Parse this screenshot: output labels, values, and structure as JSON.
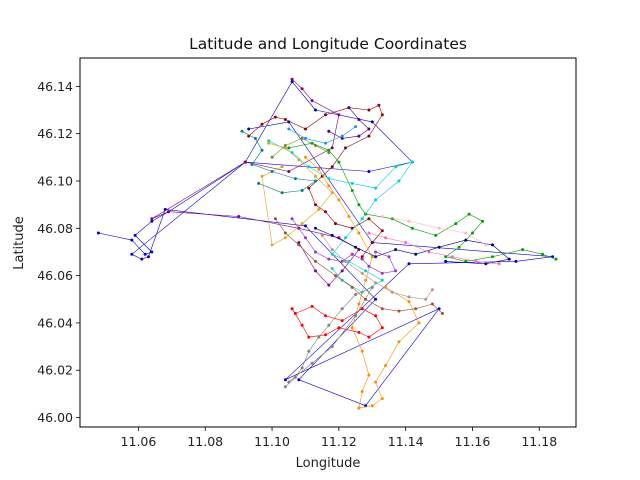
{
  "chart_data": {
    "type": "line",
    "title": "Latitude and Longitude Coordinates",
    "xlabel": "Longitude",
    "ylabel": "Latitude",
    "xlim": [
      11.0425,
      11.191
    ],
    "ylim": [
      45.996,
      46.152
    ],
    "xticks": [
      "11.06",
      "11.08",
      "11.10",
      "11.12",
      "11.14",
      "11.16",
      "11.18"
    ],
    "yticks": [
      "46.00",
      "46.02",
      "46.04",
      "46.06",
      "46.08",
      "46.10",
      "46.12",
      "46.14"
    ],
    "grid": false,
    "legend": "none",
    "series": [
      {
        "color": "#0000cc",
        "points": [
          [
            11.048,
            46.078
          ],
          [
            11.058,
            46.075
          ],
          [
            11.062,
            46.069
          ],
          [
            11.064,
            46.07
          ],
          [
            11.059,
            46.077
          ],
          [
            11.064,
            46.083
          ],
          [
            11.069,
            46.087
          ],
          [
            11.092,
            46.108
          ],
          [
            11.106,
            46.142
          ],
          [
            11.113,
            46.13
          ],
          [
            11.13,
            46.125
          ],
          [
            11.142,
            46.108
          ],
          [
            11.129,
            46.104
          ],
          [
            11.092,
            46.108
          ],
          [
            11.058,
            46.069
          ],
          [
            11.061,
            46.067
          ],
          [
            11.063,
            46.068
          ],
          [
            11.068,
            46.088
          ],
          [
            11.11,
            46.081
          ],
          [
            11.131,
            46.05
          ],
          [
            11.108,
            46.016
          ],
          [
            11.128,
            46.005
          ],
          [
            11.15,
            46.046
          ],
          [
            11.104,
            46.016
          ],
          [
            11.141,
            46.065
          ],
          [
            11.173,
            46.066
          ],
          [
            11.184,
            46.068
          ],
          [
            11.13,
            46.074
          ],
          [
            11.105,
            46.125
          ],
          [
            11.093,
            46.122
          ]
        ]
      },
      {
        "color": "#800080",
        "points": [
          [
            11.106,
            46.143
          ],
          [
            11.109,
            46.139
          ],
          [
            11.112,
            46.134
          ],
          [
            11.12,
            46.128
          ],
          [
            11.118,
            46.114
          ],
          [
            11.105,
            46.104
          ],
          [
            11.092,
            46.108
          ],
          [
            11.064,
            46.084
          ],
          [
            11.069,
            46.087
          ],
          [
            11.09,
            46.085
          ],
          [
            11.108,
            46.08
          ],
          [
            11.12,
            46.076
          ],
          [
            11.126,
            46.071
          ],
          [
            11.121,
            46.062
          ],
          [
            11.117,
            46.056
          ],
          [
            11.113,
            46.062
          ],
          [
            11.108,
            46.074
          ]
        ]
      },
      {
        "color": "#8b0000",
        "points": [
          [
            11.093,
            46.119
          ],
          [
            11.097,
            46.124
          ],
          [
            11.101,
            46.127
          ],
          [
            11.104,
            46.126
          ],
          [
            11.11,
            46.122
          ],
          [
            11.116,
            46.128
          ],
          [
            11.123,
            46.131
          ],
          [
            11.129,
            46.13
          ],
          [
            11.132,
            46.132
          ],
          [
            11.133,
            46.128
          ],
          [
            11.129,
            46.119
          ],
          [
            11.122,
            46.114
          ],
          [
            11.118,
            46.106
          ],
          [
            11.115,
            46.102
          ],
          [
            11.111,
            46.097
          ],
          [
            11.113,
            46.09
          ],
          [
            11.116,
            46.087
          ],
          [
            11.119,
            46.082
          ],
          [
            11.124,
            46.08
          ],
          [
            11.129,
            46.084
          ],
          [
            11.133,
            46.079
          ],
          [
            11.13,
            46.074
          ],
          [
            11.127,
            46.068
          ]
        ]
      },
      {
        "color": "#00a000",
        "points": [
          [
            11.105,
            46.114
          ],
          [
            11.112,
            46.116
          ],
          [
            11.117,
            46.113
          ],
          [
            11.12,
            46.108
          ],
          [
            11.124,
            46.096
          ],
          [
            11.126,
            46.09
          ],
          [
            11.128,
            46.086
          ],
          [
            11.136,
            46.084
          ],
          [
            11.142,
            46.08
          ],
          [
            11.149,
            46.077
          ],
          [
            11.155,
            46.082
          ],
          [
            11.159,
            46.086
          ],
          [
            11.163,
            46.083
          ],
          [
            11.16,
            46.078
          ],
          [
            11.156,
            46.072
          ],
          [
            11.152,
            46.068
          ],
          [
            11.158,
            46.066
          ],
          [
            11.166,
            46.068
          ],
          [
            11.175,
            46.071
          ],
          [
            11.181,
            46.069
          ],
          [
            11.185,
            46.067
          ]
        ]
      },
      {
        "color": "#00d0d0",
        "points": [
          [
            11.099,
            46.117
          ],
          [
            11.106,
            46.112
          ],
          [
            11.111,
            46.106
          ],
          [
            11.117,
            46.101
          ],
          [
            11.124,
            46.099
          ],
          [
            11.131,
            46.097
          ],
          [
            11.137,
            46.106
          ],
          [
            11.142,
            46.108
          ],
          [
            11.138,
            46.1
          ],
          [
            11.131,
            46.092
          ],
          [
            11.127,
            46.084
          ],
          [
            11.122,
            46.076
          ],
          [
            11.118,
            46.069
          ],
          [
            11.123,
            46.066
          ],
          [
            11.128,
            46.062
          ],
          [
            11.133,
            46.058
          ],
          [
            11.127,
            46.053
          ],
          [
            11.121,
            46.058
          ],
          [
            11.118,
            46.063
          ]
        ]
      },
      {
        "color": "#ff8c00",
        "points": [
          [
            11.11,
            46.11
          ],
          [
            11.114,
            46.105
          ],
          [
            11.117,
            46.098
          ],
          [
            11.12,
            46.092
          ],
          [
            11.123,
            46.085
          ],
          [
            11.126,
            46.078
          ],
          [
            11.13,
            46.068
          ],
          [
            11.128,
            46.058
          ],
          [
            11.126,
            46.048
          ],
          [
            11.124,
            46.038
          ],
          [
            11.127,
            46.028
          ],
          [
            11.129,
            46.018
          ],
          [
            11.127,
            46.011
          ],
          [
            11.126,
            46.004
          ],
          [
            11.13,
            46.005
          ],
          [
            11.133,
            46.008
          ],
          [
            11.131,
            46.015
          ],
          [
            11.134,
            46.022
          ],
          [
            11.138,
            46.032
          ],
          [
            11.144,
            46.04
          ],
          [
            11.141,
            46.049
          ],
          [
            11.134,
            46.055
          ]
        ]
      },
      {
        "color": "#ff0000",
        "points": [
          [
            11.106,
            46.046
          ],
          [
            11.109,
            46.039
          ],
          [
            11.111,
            46.034
          ],
          [
            11.116,
            46.035
          ],
          [
            11.12,
            46.038
          ],
          [
            11.126,
            46.036
          ],
          [
            11.129,
            46.034
          ],
          [
            11.133,
            46.038
          ],
          [
            11.131,
            46.043
          ],
          [
            11.127,
            46.046
          ],
          [
            11.121,
            46.041
          ],
          [
            11.116,
            46.043
          ],
          [
            11.112,
            46.047
          ],
          [
            11.107,
            46.044
          ]
        ]
      },
      {
        "color": "#808080",
        "points": [
          [
            11.104,
            46.013
          ],
          [
            11.107,
            46.017
          ],
          [
            11.109,
            46.021
          ],
          [
            11.111,
            46.028
          ],
          [
            11.114,
            46.034
          ],
          [
            11.117,
            46.039
          ],
          [
            11.121,
            46.046
          ],
          [
            11.125,
            46.052
          ],
          [
            11.13,
            46.055
          ],
          [
            11.125,
            46.043
          ],
          [
            11.118,
            46.03
          ],
          [
            11.112,
            46.023
          ],
          [
            11.105,
            46.015
          ]
        ]
      },
      {
        "color": "#daa520",
        "points": [
          [
            11.099,
            46.116
          ],
          [
            11.104,
            46.114
          ],
          [
            11.108,
            46.109
          ],
          [
            11.113,
            46.102
          ],
          [
            11.118,
            46.095
          ],
          [
            11.114,
            46.088
          ],
          [
            11.109,
            46.082
          ],
          [
            11.104,
            46.076
          ],
          [
            11.1,
            46.073
          ],
          [
            11.097,
            46.102
          ],
          [
            11.103,
            46.106
          ]
        ]
      },
      {
        "color": "#008080",
        "points": [
          [
            11.091,
            46.121
          ],
          [
            11.095,
            46.118
          ],
          [
            11.097,
            46.113
          ],
          [
            11.094,
            46.107
          ],
          [
            11.1,
            46.104
          ],
          [
            11.107,
            46.101
          ],
          [
            11.113,
            46.1
          ],
          [
            11.109,
            46.096
          ],
          [
            11.103,
            46.095
          ],
          [
            11.096,
            46.099
          ]
        ]
      },
      {
        "color": "#000080",
        "points": [
          [
            11.113,
            46.08
          ],
          [
            11.118,
            46.077
          ],
          [
            11.125,
            46.072
          ],
          [
            11.131,
            46.068
          ],
          [
            11.137,
            46.071
          ],
          [
            11.143,
            46.069
          ],
          [
            11.15,
            46.072
          ],
          [
            11.158,
            46.075
          ],
          [
            11.166,
            46.073
          ],
          [
            11.171,
            46.067
          ],
          [
            11.164,
            46.065
          ],
          [
            11.152,
            46.066
          ]
        ]
      },
      {
        "color": "#ff69b4",
        "points": [
          [
            11.129,
            46.078
          ],
          [
            11.134,
            46.076
          ],
          [
            11.14,
            46.074
          ],
          [
            11.147,
            46.07
          ],
          [
            11.154,
            46.068
          ],
          [
            11.161,
            46.066
          ],
          [
            11.168,
            46.065
          ]
        ]
      },
      {
        "color": "#ffb6c1",
        "points": [
          [
            11.133,
            46.085
          ],
          [
            11.141,
            46.083
          ],
          [
            11.15,
            46.08
          ],
          [
            11.158,
            46.078
          ],
          [
            11.164,
            46.073
          ]
        ]
      },
      {
        "color": "#9932cc",
        "points": [
          [
            11.106,
            46.084
          ],
          [
            11.11,
            46.076
          ],
          [
            11.113,
            46.07
          ],
          [
            11.117,
            46.067
          ],
          [
            11.121,
            46.066
          ],
          [
            11.124,
            46.069
          ],
          [
            11.127,
            46.067
          ],
          [
            11.129,
            46.064
          ],
          [
            11.133,
            46.061
          ],
          [
            11.137,
            46.062
          ],
          [
            11.135,
            46.068
          ],
          [
            11.131,
            46.07
          ]
        ]
      },
      {
        "color": "#a0522d",
        "points": [
          [
            11.101,
            46.084
          ],
          [
            11.104,
            46.078
          ],
          [
            11.108,
            46.073
          ],
          [
            11.113,
            46.066
          ],
          [
            11.119,
            46.06
          ],
          [
            11.124,
            46.055
          ],
          [
            11.128,
            46.05
          ],
          [
            11.133,
            46.046
          ],
          [
            11.138,
            46.045
          ],
          [
            11.143,
            46.046
          ],
          [
            11.148,
            46.048
          ],
          [
            11.151,
            46.044
          ]
        ]
      },
      {
        "color": "#bc8f8f",
        "points": [
          [
            11.115,
            46.077
          ],
          [
            11.118,
            46.071
          ],
          [
            11.122,
            46.066
          ],
          [
            11.127,
            46.061
          ],
          [
            11.131,
            46.057
          ],
          [
            11.136,
            46.053
          ],
          [
            11.141,
            46.051
          ],
          [
            11.146,
            46.05
          ],
          [
            11.148,
            46.054
          ]
        ]
      },
      {
        "color": "#4b0082",
        "points": [
          [
            11.123,
            46.131
          ],
          [
            11.126,
            46.126
          ],
          [
            11.129,
            46.122
          ],
          [
            11.126,
            46.119
          ],
          [
            11.121,
            46.118
          ],
          [
            11.117,
            46.121
          ]
        ]
      },
      {
        "color": "#6b8e23",
        "points": [
          [
            11.1,
            46.11
          ],
          [
            11.104,
            46.115
          ],
          [
            11.109,
            46.118
          ],
          [
            11.113,
            46.115
          ],
          [
            11.117,
            46.112
          ]
        ]
      },
      {
        "color": "#1e90ff",
        "points": [
          [
            11.105,
            46.122
          ],
          [
            11.11,
            46.118
          ],
          [
            11.116,
            46.116
          ],
          [
            11.121,
            46.119
          ],
          [
            11.125,
            46.123
          ]
        ]
      }
    ]
  }
}
